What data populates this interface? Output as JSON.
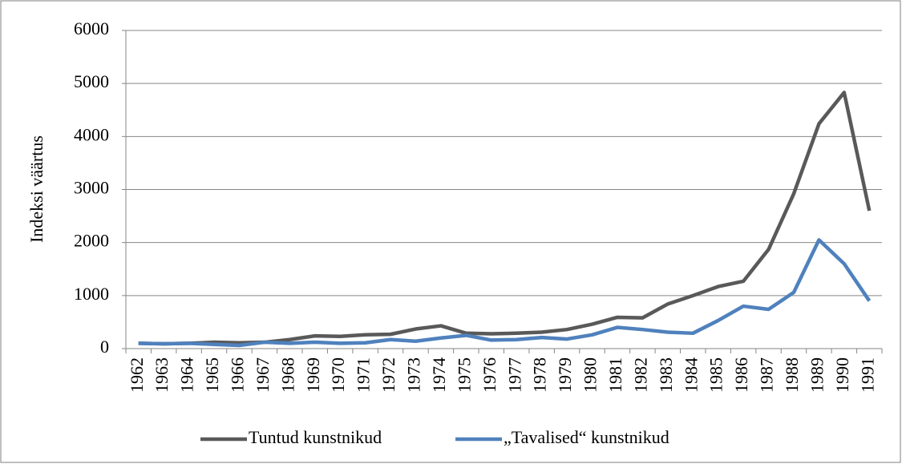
{
  "chart_data": {
    "type": "line",
    "y_label": "Indeksi väärtus",
    "categories": [
      "1962",
      "1963",
      "1964",
      "1965",
      "1966",
      "1967",
      "1968",
      "1969",
      "1970",
      "1971",
      "1972",
      "1973",
      "1974",
      "1975",
      "1976",
      "1977",
      "1978",
      "1979",
      "1980",
      "1981",
      "1982",
      "1983",
      "1984",
      "1985",
      "1986",
      "1987",
      "1988",
      "1989",
      "1990",
      "1991"
    ],
    "series": [
      {
        "name": "Tuntud kunstnikud",
        "color": "#595959",
        "values": [
          100,
          90,
          100,
          120,
          110,
          120,
          170,
          240,
          230,
          260,
          270,
          370,
          430,
          290,
          280,
          290,
          310,
          360,
          460,
          590,
          580,
          840,
          1000,
          1170,
          1270,
          1870,
          2920,
          4240,
          4830,
          2600
        ]
      },
      {
        "name": "„Tavalised“ kunstnikud",
        "color": "#4f81bd",
        "values": [
          100,
          90,
          100,
          80,
          60,
          120,
          100,
          120,
          100,
          110,
          170,
          140,
          200,
          250,
          160,
          170,
          210,
          180,
          260,
          400,
          360,
          310,
          290,
          530,
          800,
          740,
          1060,
          2050,
          1600,
          900
        ]
      }
    ],
    "ylim": [
      0,
      6000
    ],
    "yticks": [
      0,
      1000,
      2000,
      3000,
      4000,
      5000,
      6000
    ],
    "grid": true,
    "legend": "bottom"
  }
}
